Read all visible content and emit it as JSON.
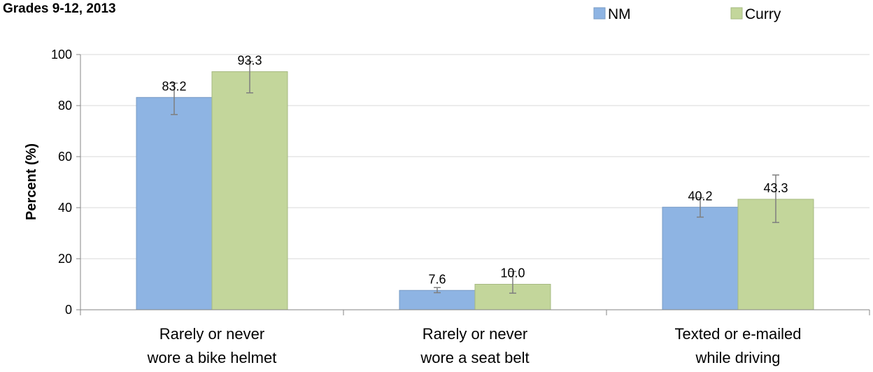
{
  "chart_data": {
    "type": "bar",
    "title": "Grades 9-12, 2013",
    "ylabel": "Percent (%)",
    "xlabel": "",
    "ylim": [
      0,
      100
    ],
    "yticks": [
      0,
      20,
      40,
      60,
      80,
      100
    ],
    "grid": true,
    "legend_position": "top-right",
    "categories": [
      [
        "Rarely or never",
        "wore a bike helmet"
      ],
      [
        "Rarely or never",
        "wore a seat belt"
      ],
      [
        "Texted or e-mailed",
        "while driving"
      ]
    ],
    "series": [
      {
        "name": "NM",
        "color": "#8eb4e3",
        "border": "#7a9cc6",
        "values": [
          83.2,
          7.6,
          40.2
        ],
        "labels": [
          "83.2",
          "7.6",
          "40.2"
        ],
        "error_low": [
          76.5,
          6.7,
          36.3
        ],
        "error_high": [
          88.8,
          8.7,
          43.9
        ]
      },
      {
        "name": "Curry",
        "color": "#c3d69b",
        "border": "#a6b981",
        "values": [
          93.3,
          10.0,
          43.3
        ],
        "labels": [
          "93.3",
          "10.0",
          "43.3"
        ],
        "error_low": [
          85.0,
          6.5,
          34.2
        ],
        "error_high": [
          97.3,
          15.0,
          52.8
        ]
      }
    ]
  }
}
